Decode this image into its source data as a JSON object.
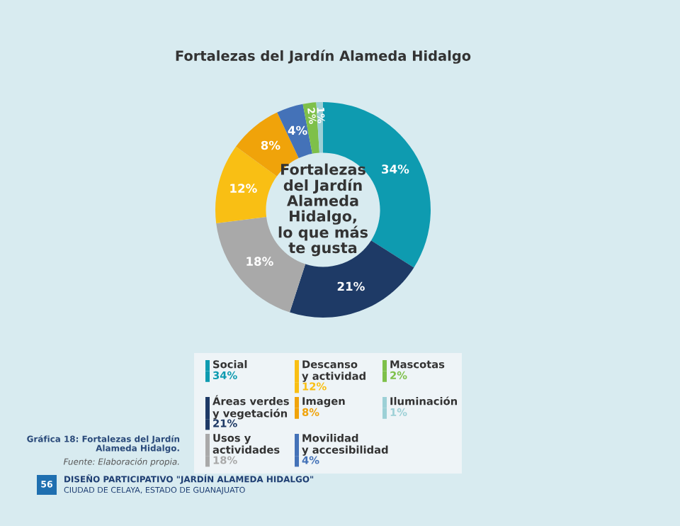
{
  "chart_data": {
    "type": "donut",
    "title": "Fortalezas del Jardín Alameda Hidalgo",
    "categories": [
      "Social",
      "Áreas verdes\ny vegetación",
      "Usos y\nactividades",
      "Descanso\ny actividad",
      "Imagen",
      "Movilidad\ny accesibilidad",
      "Mascotas",
      "Iluminación"
    ],
    "values": [
      34,
      21,
      18,
      12,
      8,
      4,
      2,
      1
    ],
    "colors": [
      "#0e9bb0",
      "#1e3a66",
      "#a9a9a9",
      "#f9bf14",
      "#f0a30a",
      "#4472b8",
      "#7ec04a",
      "#9cd0d6"
    ],
    "value_labels": [
      "34%",
      "21%",
      "18%",
      "12%",
      "8%",
      "4%",
      "2%",
      "1%"
    ],
    "legend": "bottom",
    "annotations": [
      "Fortalezas\ndel Jardín\nAlameda\nHidalgo,\nlo que más\nte gusta",
      "Gráfica 18: Fortalezas del Jardín\nAlameda Hidalgo.",
      "Fuente: Elaboración propia.",
      "56",
      "DISEÑO PARTICIPATIVO \"JARDÍN ALAMEDA HIDALGO\"",
      "CIUDAD DE CELAYA, ESTADO DE GUANAJUATO"
    ]
  }
}
